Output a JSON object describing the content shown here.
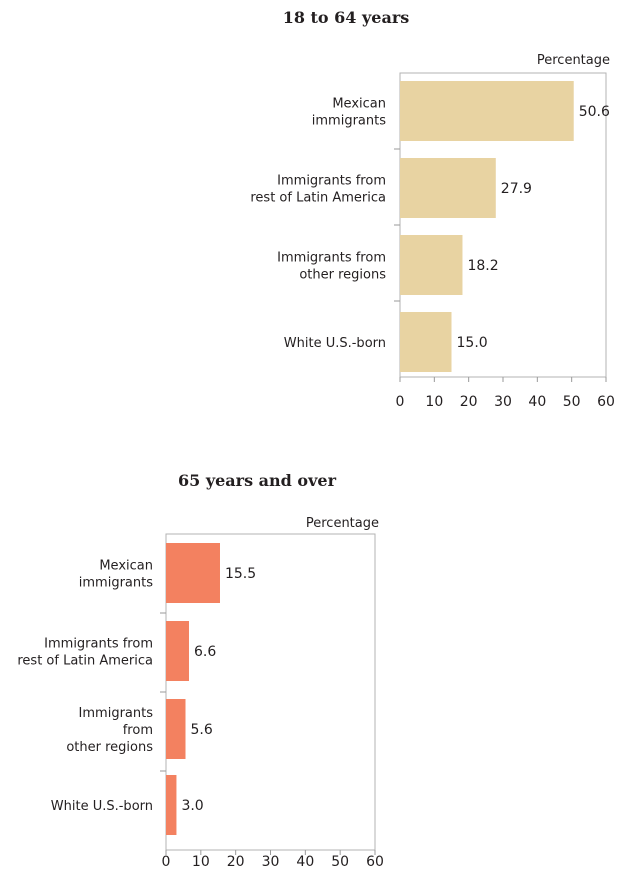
{
  "chart_data": [
    {
      "type": "bar",
      "orientation": "horizontal",
      "title": "18 to 64 years",
      "unit_label": "Percentage",
      "categories": [
        [
          "Mexican",
          "immigrants"
        ],
        [
          "Immigrants from",
          "rest of Latin America"
        ],
        [
          "Immigrants from",
          "other regions"
        ],
        [
          "White U.S.-born"
        ]
      ],
      "values": [
        50.6,
        27.9,
        18.2,
        15.0
      ],
      "value_labels": [
        "50.6",
        "27.9",
        "18.2",
        "15.0"
      ],
      "xlim": [
        0,
        60
      ],
      "ticks": [
        0,
        10,
        20,
        30,
        40,
        50,
        60
      ],
      "bar_color": "#e8d3a2"
    },
    {
      "type": "bar",
      "orientation": "horizontal",
      "title": "65 years and over",
      "unit_label": "Percentage",
      "categories": [
        [
          "Mexican",
          "immigrants"
        ],
        [
          "Immigrants from",
          "rest of Latin America"
        ],
        [
          "Immigrants",
          "from",
          "other regions"
        ],
        [
          "White U.S.-born"
        ]
      ],
      "values": [
        15.5,
        6.6,
        5.6,
        3.0
      ],
      "value_labels": [
        "15.5",
        "6.6",
        "5.6",
        "3.0"
      ],
      "xlim": [
        0,
        60
      ],
      "ticks": [
        0,
        10,
        20,
        30,
        40,
        50,
        60
      ],
      "bar_color": "#f38160"
    }
  ]
}
